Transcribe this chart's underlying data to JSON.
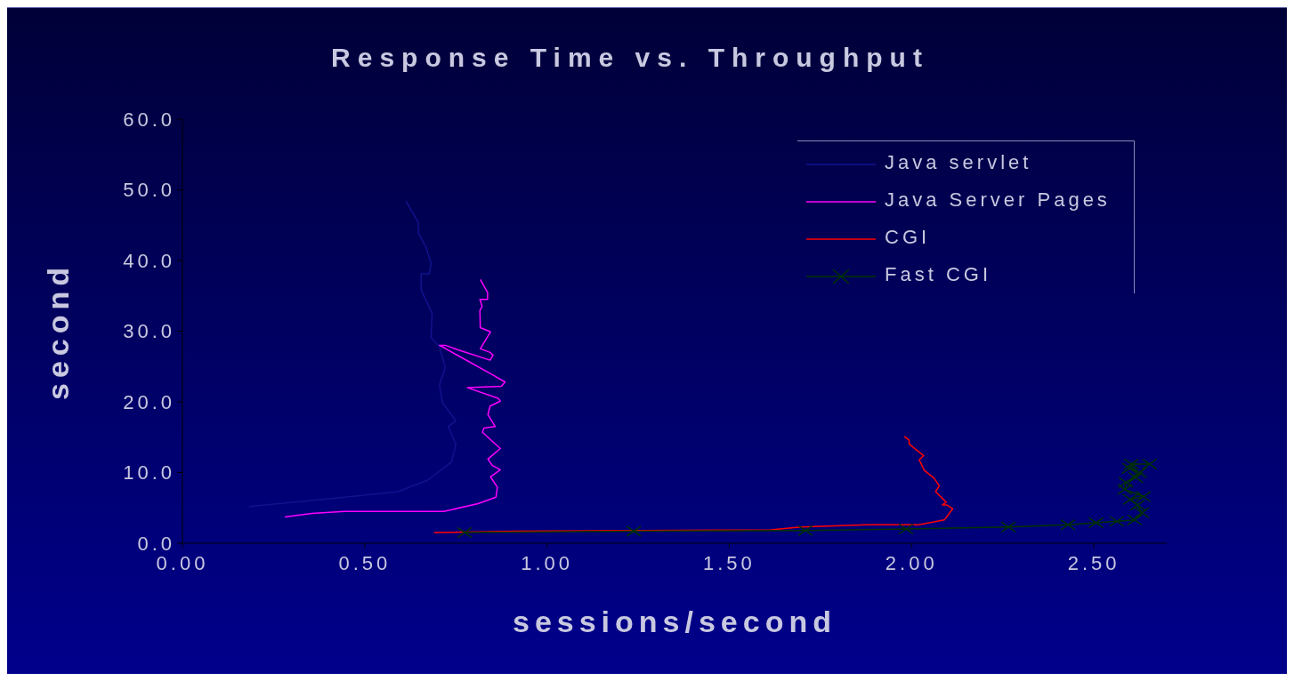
{
  "chart_data": {
    "type": "line",
    "title": "Response Time vs. Throughput",
    "xlabel": "sessions/second",
    "ylabel": "second",
    "xlim": [
      0,
      2.7
    ],
    "xticks": [
      {
        "value": 0,
        "label": "0.00"
      },
      {
        "value": 0.5,
        "label": "0.50"
      },
      {
        "value": 1,
        "label": "1.00"
      },
      {
        "value": 1.5,
        "label": "1.50"
      },
      {
        "value": 2,
        "label": "2.00"
      },
      {
        "value": 2.5,
        "label": "2.50"
      }
    ],
    "ylim": [
      0,
      60
    ],
    "yticks": [
      {
        "value": 0,
        "label": "0.0"
      },
      {
        "value": 10,
        "label": "10.0"
      },
      {
        "value": 20,
        "label": "20.0"
      },
      {
        "value": 30,
        "label": "30.0"
      },
      {
        "value": 40,
        "label": "40.0"
      },
      {
        "value": 50,
        "label": "50.0"
      },
      {
        "value": 60,
        "label": "60.0"
      }
    ],
    "grid": false,
    "legend": "top right",
    "marker": "none",
    "series": [
      {
        "name": "Java servlet",
        "color": "#12128e",
        "x": [
          0.613,
          0.646,
          0.648,
          0.668,
          0.682,
          0.677,
          0.655,
          0.655,
          0.685,
          0.682,
          0.705,
          0.721,
          0.705,
          0.713,
          0.75,
          0.729,
          0.75,
          0.738,
          0.672,
          0.591,
          0.428,
          0.265,
          0.183
        ],
        "values": [
          48.4,
          45.5,
          43.8,
          41.9,
          39.6,
          38.1,
          38.1,
          35.8,
          32.5,
          29.1,
          27.8,
          24.9,
          22.4,
          19.9,
          17.3,
          16.5,
          14.0,
          11.5,
          8.9,
          7.3,
          6.4,
          5.6,
          5.2
        ]
      },
      {
        "name": "Java Server Pages",
        "color": "#ff00ff",
        "x": [
          0.281,
          0.355,
          0.444,
          0.717,
          0.811,
          0.86,
          0.864,
          0.845,
          0.872,
          0.85,
          0.838,
          0.872,
          0.823,
          0.827,
          0.858,
          0.838,
          0.844,
          0.872,
          0.866,
          0.782,
          0.875,
          0.885,
          0.852,
          0.754,
          0.705,
          0.721,
          0.754,
          0.844,
          0.852,
          0.844,
          0.817,
          0.845,
          0.817,
          0.816,
          0.822,
          0.816,
          0.837,
          0.837,
          0.817
        ],
        "values": [
          3.7,
          4.2,
          4.5,
          4.5,
          5.6,
          6.5,
          7.9,
          9.4,
          10.4,
          11.0,
          11.9,
          13.4,
          15.7,
          16.3,
          16.5,
          18.2,
          19.4,
          20.1,
          20.5,
          22.0,
          22.2,
          22.8,
          23.8,
          26.6,
          28.0,
          28.0,
          27.4,
          25.9,
          26.6,
          27.0,
          27.5,
          29.9,
          30.5,
          32.9,
          33.5,
          34.5,
          34.5,
          35.5,
          37.3
        ]
      },
      {
        "name": "CGI",
        "color": "#ff0000",
        "x": [
          0.69,
          0.912,
          1.613,
          1.697,
          1.88,
          2.02,
          2.09,
          2.099,
          2.113,
          2.097,
          2.084,
          2.095,
          2.066,
          2.076,
          2.062,
          2.035,
          2.021,
          2.033,
          1.994,
          1.993,
          1.98
        ],
        "values": [
          1.5,
          1.7,
          1.9,
          2.3,
          2.6,
          2.6,
          3.3,
          3.9,
          4.9,
          5.4,
          5.4,
          5.8,
          7.3,
          8.1,
          9.2,
          10.3,
          11.8,
          12.4,
          14.0,
          14.6,
          15.1
        ]
      },
      {
        "name": "Fast CGI",
        "color": "#003300",
        "marker": "cross",
        "x": [
          0.774,
          1.238,
          1.709,
          1.985,
          2.266,
          2.429,
          2.506,
          2.563,
          2.612,
          2.632,
          2.62,
          2.6,
          2.636,
          2.585,
          2.588,
          2.615,
          2.625,
          2.598,
          2.603,
          2.653
        ],
        "values": [
          1.5,
          1.7,
          1.8,
          2.0,
          2.3,
          2.6,
          2.9,
          3.1,
          3.3,
          4.3,
          5.4,
          6.2,
          6.6,
          7.6,
          8.6,
          9.3,
          10.0,
          10.6,
          11.2,
          11.2
        ]
      }
    ]
  }
}
